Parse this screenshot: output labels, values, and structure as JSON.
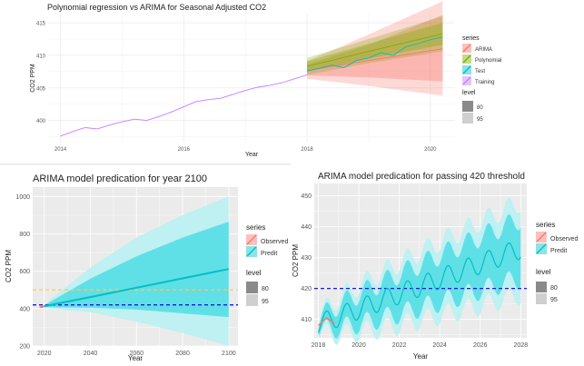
{
  "chart_data": [
    {
      "type": "line",
      "title": "Polynomial regression vs ARIMA for Seasonal Adjusted CO2",
      "xlabel": "Year",
      "ylabel": "CO2 PPM",
      "xlim": [
        2013.8,
        2020.4
      ],
      "ylim": [
        396.6,
        416.4
      ],
      "xticks": [
        2014,
        2016,
        2018,
        2020
      ],
      "yticks": [
        400,
        405,
        410,
        415
      ],
      "grid": true,
      "legend_position": "right",
      "legend": {
        "series_title": "series",
        "level_title": "level",
        "levels": [
          "80",
          "95"
        ]
      },
      "series": [
        {
          "name": "ARIMA",
          "color": "#f8766d",
          "x": [
            2018.0,
            2019.0,
            2020.2
          ],
          "y": [
            407.7,
            409.2,
            411.0
          ],
          "band80": {
            "lo": [
              406.9,
              406.6,
              406.0
            ],
            "hi": [
              408.6,
              411.6,
              416.2
            ]
          },
          "band95": {
            "lo": [
              406.4,
              405.3,
              403.8
            ],
            "hi": [
              409.1,
              413.2,
              418.3
            ]
          }
        },
        {
          "name": "Polynomial",
          "color": "#7cae00",
          "x": [
            2018.0,
            2019.0,
            2020.2
          ],
          "y": [
            408.3,
            410.6,
            413.3
          ],
          "band80": {
            "lo": [
              407.5,
              409.5,
              411.6
            ],
            "hi": [
              409.1,
              411.8,
              415.0
            ]
          },
          "band95": {
            "lo": [
              407.0,
              408.8,
              410.6
            ],
            "hi": [
              409.6,
              412.5,
              416.0
            ]
          }
        },
        {
          "name": "Test",
          "color": "#00bfc4",
          "x": [
            2018.0,
            2018.2,
            2018.4,
            2018.6,
            2018.8,
            2019.0,
            2019.2,
            2019.4,
            2019.6,
            2019.8,
            2020.0,
            2020.2
          ],
          "y": [
            407.6,
            408.0,
            408.5,
            408.1,
            409.2,
            409.6,
            410.4,
            410.0,
            411.3,
            411.8,
            412.4,
            412.8
          ]
        },
        {
          "name": "Training",
          "color": "#c77cff",
          "x": [
            2014.0,
            2014.2,
            2014.4,
            2014.6,
            2014.8,
            2015.0,
            2015.2,
            2015.4,
            2015.6,
            2015.8,
            2016.0,
            2016.2,
            2016.4,
            2016.6,
            2016.8,
            2017.0,
            2017.2,
            2017.4,
            2017.6,
            2017.8,
            2018.0
          ],
          "y": [
            397.6,
            398.3,
            398.9,
            398.7,
            399.3,
            399.8,
            400.2,
            400.0,
            400.6,
            401.3,
            402.1,
            402.9,
            403.2,
            403.4,
            404.0,
            404.6,
            405.1,
            405.4,
            405.8,
            406.4,
            407.0
          ]
        }
      ]
    },
    {
      "type": "line",
      "title": "ARIMA model predication for year 2100",
      "xlabel": "Year",
      "ylabel": "CO2 PPM",
      "xlim": [
        2015,
        2104
      ],
      "ylim": [
        200,
        1050
      ],
      "xticks": [
        2020,
        2040,
        2060,
        2080,
        2100
      ],
      "yticks": [
        200,
        400,
        600,
        800,
        1000
      ],
      "grid": true,
      "legend_position": "right",
      "legend": {
        "series_title": "series",
        "level_title": "level",
        "levels": [
          "80",
          "95"
        ]
      },
      "hlines": [
        {
          "y": 500,
          "color": "#f6c86a",
          "style": "dashed"
        },
        {
          "y": 420,
          "color": "#1a1adc",
          "style": "dashed"
        }
      ],
      "series": [
        {
          "name": "Observed",
          "color": "#f8766d",
          "x": [
            2018,
            2020
          ],
          "y": [
            407,
            412
          ]
        },
        {
          "name": "Predit",
          "color": "#00bfc4",
          "x": [
            2020,
            2040,
            2060,
            2080,
            2100
          ],
          "y": [
            413,
            462,
            512,
            562,
            612
          ],
          "band80": {
            "lo": [
              408,
              405,
              395,
              375,
              355
            ],
            "hi": [
              418,
              560,
              680,
              780,
              865
            ]
          },
          "band95": {
            "lo": [
              405,
              380,
              330,
              270,
              200
            ],
            "hi": [
              421,
              620,
              780,
              900,
              1000
            ]
          }
        }
      ]
    },
    {
      "type": "line",
      "title": "ARIMA model predication for passing 420 threshold",
      "xlabel": "Year",
      "ylabel": "CO2 PPM",
      "xlim": [
        2017.8,
        2028.3
      ],
      "ylim": [
        404,
        454
      ],
      "xticks": [
        2018,
        2020,
        2022,
        2024,
        2026,
        2028
      ],
      "yticks": [
        410,
        420,
        430,
        440,
        450
      ],
      "grid": true,
      "legend_position": "right",
      "legend": {
        "series_title": "series",
        "level_title": "level",
        "levels": [
          "80",
          "95"
        ]
      },
      "hlines": [
        {
          "y": 420,
          "color": "#1a1adc",
          "style": "dashed"
        }
      ],
      "series": [
        {
          "name": "Observed",
          "color": "#f8766d",
          "x": [
            2018.0,
            2018.4,
            2018.8
          ],
          "y": [
            408.0,
            410.5,
            408.7
          ]
        },
        {
          "name": "Predit",
          "color": "#00bfc4",
          "seasonal": {
            "x_start": 2018.0,
            "x_end": 2028.0,
            "base": 408.4,
            "slope": 2.45,
            "amplitude": 3.3
          },
          "band80": {
            "start_halfwidth": 1.0,
            "end_halfwidth": 9.5
          },
          "band95": {
            "start_halfwidth": 1.5,
            "end_halfwidth": 15.0
          }
        }
      ]
    }
  ]
}
